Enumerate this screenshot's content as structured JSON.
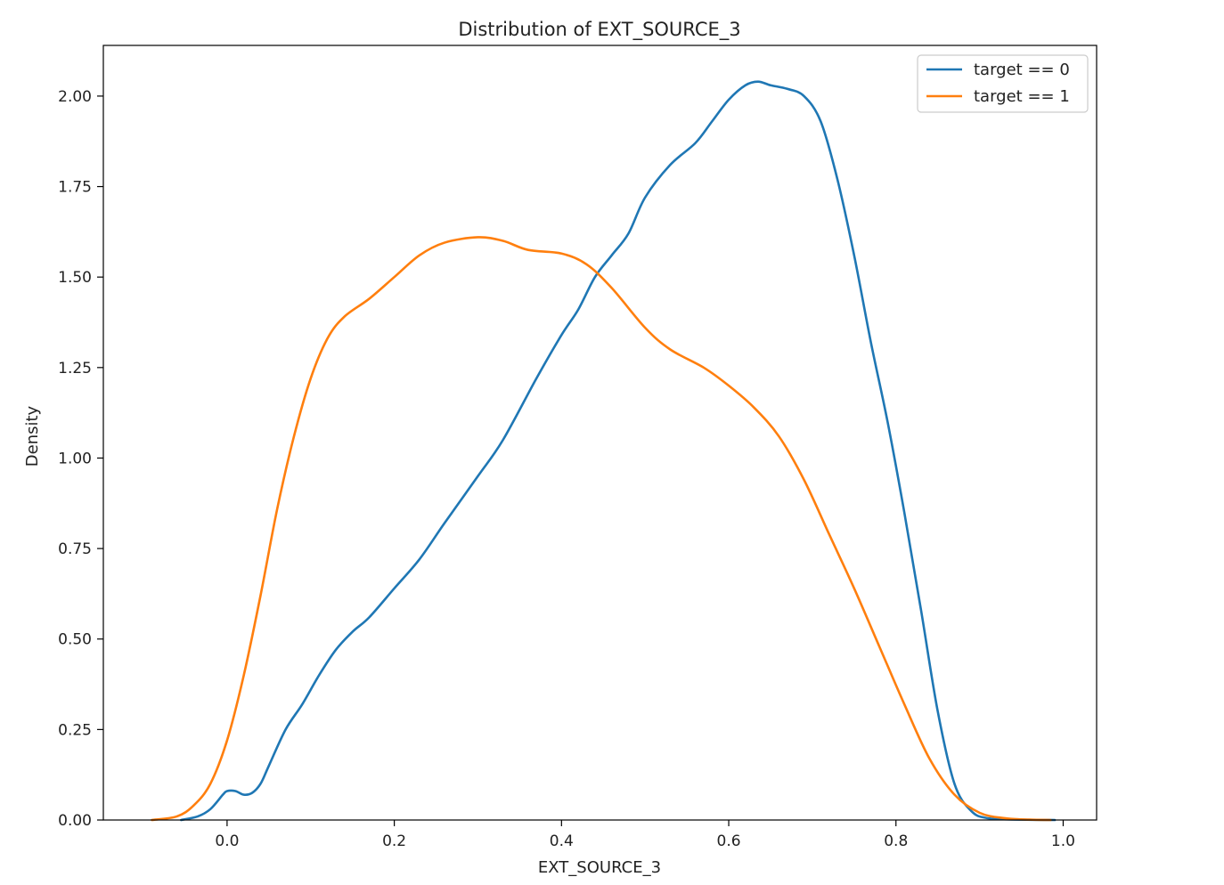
{
  "chart_data": {
    "type": "line",
    "title": "Distribution of EXT_SOURCE_3",
    "xlabel": "EXT_SOURCE_3",
    "ylabel": "Density",
    "xlim": [
      -0.148,
      1.04
    ],
    "ylim": [
      0,
      2.14
    ],
    "x_ticks": [
      0.0,
      0.2,
      0.4,
      0.6,
      0.8,
      1.0
    ],
    "x_tick_labels": [
      "0.0",
      "0.2",
      "0.4",
      "0.6",
      "0.8",
      "1.0"
    ],
    "y_ticks": [
      0.0,
      0.25,
      0.5,
      0.75,
      1.0,
      1.25,
      1.5,
      1.75,
      2.0
    ],
    "y_tick_labels": [
      "0.00",
      "0.25",
      "0.50",
      "0.75",
      "1.00",
      "1.25",
      "1.50",
      "1.75",
      "2.00"
    ],
    "grid": false,
    "legend_position": "top-right",
    "series": [
      {
        "name": "target == 0",
        "color": "#1f77b4",
        "points": [
          [
            -0.055,
            0.0
          ],
          [
            -0.035,
            0.01
          ],
          [
            -0.02,
            0.03
          ],
          [
            -0.005,
            0.07
          ],
          [
            0.0,
            0.08
          ],
          [
            0.01,
            0.08
          ],
          [
            0.02,
            0.07
          ],
          [
            0.03,
            0.075
          ],
          [
            0.04,
            0.1
          ],
          [
            0.05,
            0.15
          ],
          [
            0.07,
            0.25
          ],
          [
            0.09,
            0.32
          ],
          [
            0.11,
            0.4
          ],
          [
            0.13,
            0.47
          ],
          [
            0.15,
            0.52
          ],
          [
            0.17,
            0.56
          ],
          [
            0.2,
            0.64
          ],
          [
            0.23,
            0.72
          ],
          [
            0.26,
            0.82
          ],
          [
            0.3,
            0.95
          ],
          [
            0.33,
            1.05
          ],
          [
            0.37,
            1.22
          ],
          [
            0.4,
            1.34
          ],
          [
            0.42,
            1.41
          ],
          [
            0.44,
            1.5
          ],
          [
            0.46,
            1.56
          ],
          [
            0.48,
            1.62
          ],
          [
            0.5,
            1.72
          ],
          [
            0.53,
            1.81
          ],
          [
            0.56,
            1.87
          ],
          [
            0.58,
            1.93
          ],
          [
            0.6,
            1.99
          ],
          [
            0.62,
            2.03
          ],
          [
            0.635,
            2.04
          ],
          [
            0.65,
            2.03
          ],
          [
            0.67,
            2.02
          ],
          [
            0.69,
            2.0
          ],
          [
            0.71,
            1.93
          ],
          [
            0.73,
            1.77
          ],
          [
            0.75,
            1.56
          ],
          [
            0.77,
            1.32
          ],
          [
            0.79,
            1.1
          ],
          [
            0.81,
            0.85
          ],
          [
            0.83,
            0.58
          ],
          [
            0.85,
            0.3
          ],
          [
            0.87,
            0.1
          ],
          [
            0.89,
            0.025
          ],
          [
            0.91,
            0.005
          ],
          [
            0.95,
            0.001
          ],
          [
            0.99,
            0.0
          ]
        ]
      },
      {
        "name": "target == 1",
        "color": "#ff7f0e",
        "points": [
          [
            -0.09,
            0.0
          ],
          [
            -0.06,
            0.01
          ],
          [
            -0.04,
            0.04
          ],
          [
            -0.02,
            0.1
          ],
          [
            0.0,
            0.22
          ],
          [
            0.02,
            0.4
          ],
          [
            0.04,
            0.62
          ],
          [
            0.06,
            0.86
          ],
          [
            0.08,
            1.06
          ],
          [
            0.1,
            1.22
          ],
          [
            0.12,
            1.33
          ],
          [
            0.14,
            1.39
          ],
          [
            0.17,
            1.44
          ],
          [
            0.2,
            1.5
          ],
          [
            0.23,
            1.56
          ],
          [
            0.26,
            1.595
          ],
          [
            0.3,
            1.61
          ],
          [
            0.33,
            1.6
          ],
          [
            0.36,
            1.575
          ],
          [
            0.4,
            1.565
          ],
          [
            0.43,
            1.535
          ],
          [
            0.46,
            1.47
          ],
          [
            0.5,
            1.36
          ],
          [
            0.53,
            1.3
          ],
          [
            0.57,
            1.25
          ],
          [
            0.6,
            1.2
          ],
          [
            0.63,
            1.14
          ],
          [
            0.66,
            1.06
          ],
          [
            0.69,
            0.94
          ],
          [
            0.72,
            0.79
          ],
          [
            0.75,
            0.64
          ],
          [
            0.78,
            0.48
          ],
          [
            0.81,
            0.32
          ],
          [
            0.84,
            0.17
          ],
          [
            0.87,
            0.07
          ],
          [
            0.9,
            0.02
          ],
          [
            0.93,
            0.005
          ],
          [
            0.96,
            0.001
          ],
          [
            0.985,
            0.0
          ]
        ]
      }
    ]
  }
}
